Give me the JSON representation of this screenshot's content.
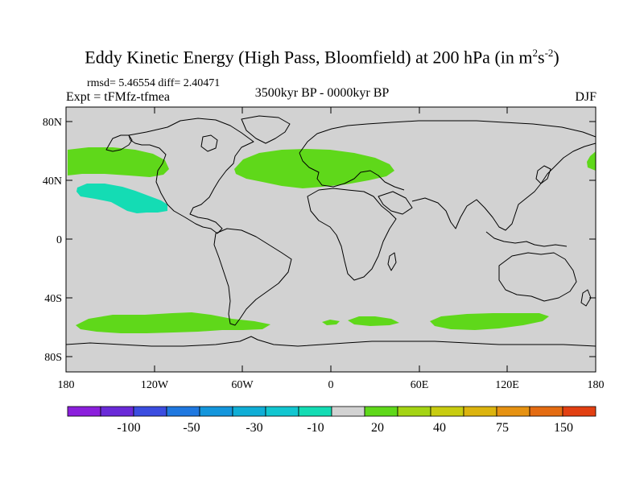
{
  "title": {
    "main": "Eddy Kinetic Energy (High Pass, Bloomfield) at 200 hPa (in m",
    "sup1": "2",
    "mid": "s",
    "sup2": "-2",
    "end": ")"
  },
  "stats": "rmsd= 5.46554 diff= 2.40471",
  "experiment": "Expt = tFMfz-tfmea",
  "period": "3500kyr BP - 0000kyr BP",
  "season": "DJF",
  "lat_ticks": [
    "80N",
    "40N",
    "0",
    "40S",
    "80S"
  ],
  "lon_ticks": [
    "180",
    "120W",
    "60W",
    "0",
    "60E",
    "120E",
    "180"
  ],
  "colorbar": {
    "colors": [
      "#8b1fdc",
      "#6a2ad8",
      "#3b4de0",
      "#1f78e0",
      "#1496dc",
      "#10aed6",
      "#12c6d0",
      "#14dcb4",
      "#d2d2d2",
      "#5fd81a",
      "#a4d414",
      "#c8cc10",
      "#dcb40e",
      "#e69212",
      "#e46c12",
      "#e24012"
    ],
    "labels": [
      "-100",
      "-50",
      "-30",
      "-10",
      "20",
      "40",
      "75",
      "150"
    ]
  },
  "anomaly_regions": [
    {
      "name": "north-pacific-positive",
      "level": "20"
    },
    {
      "name": "subtropical-pacific-negative",
      "level": "-10"
    },
    {
      "name": "north-atlantic-europe-positive",
      "level": "20"
    },
    {
      "name": "dateline-east-positive",
      "level": "20"
    },
    {
      "name": "south-pacific-positive",
      "level": "20"
    },
    {
      "name": "south-atlantic-positive",
      "level": "20"
    },
    {
      "name": "south-indian-positive",
      "level": "20"
    }
  ]
}
